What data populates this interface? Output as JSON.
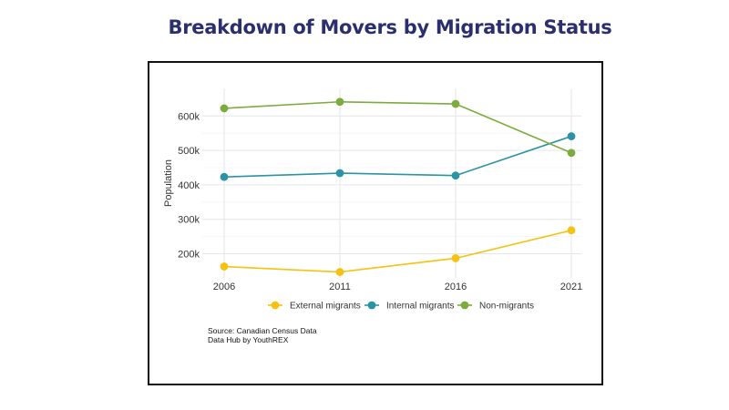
{
  "title": "Breakdown of Movers by Migration Status",
  "chart_data": {
    "type": "line",
    "title": "Breakdown of Movers by Migration Status",
    "xlabel": "",
    "ylabel": "Population",
    "x": [
      "2006",
      "2011",
      "2016",
      "2021"
    ],
    "ylim": [
      130000,
      680000
    ],
    "yticks": [
      200000,
      300000,
      400000,
      500000,
      600000
    ],
    "ytick_labels": [
      "200k",
      "300k",
      "400k",
      "500k",
      "600k"
    ],
    "grid": true,
    "legend_position": "bottom",
    "series": [
      {
        "name": "External migrants",
        "color": "#f5c211",
        "values": [
          163000,
          147000,
          187000,
          268000
        ]
      },
      {
        "name": "Internal migrants",
        "color": "#2a93a6",
        "values": [
          423000,
          434000,
          427000,
          541000
        ]
      },
      {
        "name": "Non-migrants",
        "color": "#7cac3e",
        "values": [
          622000,
          641000,
          635000,
          493000
        ]
      }
    ],
    "source_lines": [
      "Source: Canadian Census Data",
      "Data Hub by YouthREX"
    ]
  }
}
